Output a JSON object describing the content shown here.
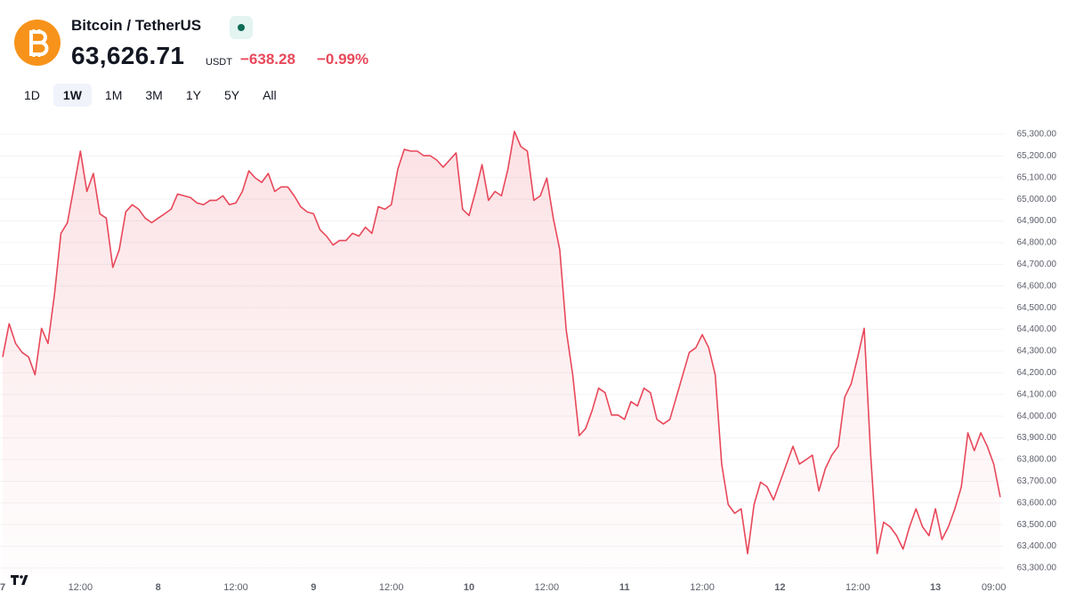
{
  "header": {
    "title": "Bitcoin / TetherUS",
    "price": "63,626.71",
    "unit": "USDT",
    "change": "−638.28",
    "change_percent": "−0.99%",
    "tabs": [
      "1D",
      "1W",
      "1M",
      "3M",
      "1Y",
      "5Y",
      "All"
    ],
    "active_tab": "1W"
  },
  "chart_data": {
    "type": "line",
    "color": "#e8485a",
    "grid": true,
    "x": [
      0,
      1,
      2,
      3,
      4,
      5,
      6,
      7,
      8,
      9,
      10,
      11,
      12,
      13,
      14,
      15,
      16,
      17,
      18,
      19,
      20,
      21,
      22,
      23,
      24,
      25,
      26,
      27,
      28,
      29,
      30,
      31,
      32,
      33,
      34,
      35,
      36,
      37,
      38,
      39,
      40,
      41,
      42,
      43,
      44,
      45,
      46,
      47,
      48,
      49,
      50,
      51,
      52,
      53,
      54,
      55,
      56,
      57,
      58,
      59,
      60,
      61,
      62,
      63,
      64,
      65,
      66,
      67,
      68,
      69,
      70,
      71,
      72,
      73,
      74,
      75,
      76,
      77,
      78,
      79,
      80,
      81,
      82,
      83,
      84,
      85,
      86,
      87,
      88,
      89,
      90,
      91,
      92,
      93,
      94,
      95,
      96,
      97,
      98,
      99,
      100,
      101,
      102,
      103,
      104,
      105,
      106,
      107,
      108,
      109,
      110,
      111,
      112,
      113,
      114,
      115,
      116,
      117,
      118,
      119,
      120,
      121,
      122,
      123,
      124,
      125,
      126,
      127,
      128,
      129,
      130,
      131,
      132,
      133,
      134,
      135,
      136,
      137,
      138,
      139,
      140,
      141,
      142,
      143,
      144,
      145,
      146,
      147,
      148,
      149,
      150,
      151,
      152,
      153,
      154
    ],
    "series": [
      {
        "values": [
          64273,
          64426,
          64335,
          64294,
          64273,
          64191,
          64405,
          64335,
          64562,
          64843,
          64892,
          65057,
          65222,
          65036,
          65119,
          64933,
          64913,
          64686,
          64768,
          64942,
          64975,
          64954,
          64913,
          64892,
          64913,
          64933,
          64954,
          65024,
          65016,
          65008,
          64983,
          64975,
          64995,
          64995,
          65016,
          64975,
          64983,
          65036,
          65131,
          65098,
          65078,
          65119,
          65036,
          65057,
          65057,
          65016,
          64966,
          64942,
          64933,
          64859,
          64830,
          64789,
          64810,
          64810,
          64843,
          64830,
          64871,
          64843,
          64966,
          64954,
          64975,
          65139,
          65230,
          65222,
          65222,
          65201,
          65201,
          65181,
          65148,
          65181,
          65214,
          64954,
          64925,
          65036,
          65160,
          64995,
          65036,
          65016,
          65139,
          65313,
          65243,
          65222,
          64995,
          65016,
          65098,
          64913,
          64768,
          64397,
          64191,
          63910,
          63943,
          64026,
          64129,
          64108,
          64005,
          64005,
          63985,
          64067,
          64047,
          64129,
          64108,
          63985,
          63964,
          63985,
          64088,
          64191,
          64294,
          64315,
          64376,
          64315,
          64191,
          63779,
          63593,
          63552,
          63573,
          63366,
          63593,
          63696,
          63675,
          63614,
          63696,
          63779,
          63861,
          63779,
          63799,
          63820,
          63655,
          63758,
          63820,
          63861,
          64088,
          64150,
          64273,
          64405,
          63820,
          63366,
          63511,
          63490,
          63449,
          63387,
          63490,
          63573,
          63490,
          63449,
          63573,
          63431,
          63490,
          63573,
          63675,
          63923,
          63841,
          63923,
          63861,
          63779,
          63626.71
        ]
      }
    ],
    "xlim": [
      0,
      154.5
    ],
    "xticks": [
      {
        "value": 0,
        "label": "7"
      },
      {
        "value": 12,
        "label": "12:00"
      },
      {
        "value": 24,
        "label": "8"
      },
      {
        "value": 36,
        "label": "12:00"
      },
      {
        "value": 48,
        "label": "9"
      },
      {
        "value": 60,
        "label": "12:00"
      },
      {
        "value": 72,
        "label": "10"
      },
      {
        "value": 84,
        "label": "12:00"
      },
      {
        "value": 96,
        "label": "11"
      },
      {
        "value": 108,
        "label": "12:00"
      },
      {
        "value": 120,
        "label": "12"
      },
      {
        "value": 132,
        "label": "12:00"
      },
      {
        "value": 144,
        "label": "13"
      },
      {
        "value": 153,
        "label": "09:00"
      }
    ],
    "ylim": [
      63263,
      65345
    ],
    "yticks": [
      {
        "value": 63300,
        "label": "63,300.00"
      },
      {
        "value": 63400,
        "label": "63,400.00"
      },
      {
        "value": 63500,
        "label": "63,500.00"
      },
      {
        "value": 63600,
        "label": "63,600.00"
      },
      {
        "value": 63700,
        "label": "63,700.00"
      },
      {
        "value": 63800,
        "label": "63,800.00"
      },
      {
        "value": 63900,
        "label": "63,900.00"
      },
      {
        "value": 64000,
        "label": "64,000.00"
      },
      {
        "value": 64100,
        "label": "64,100.00"
      },
      {
        "value": 64200,
        "label": "64,200.00"
      },
      {
        "value": 64300,
        "label": "64,300.00"
      },
      {
        "value": 64400,
        "label": "64,400.00"
      },
      {
        "value": 64500,
        "label": "64,500.00"
      },
      {
        "value": 64600,
        "label": "64,600.00"
      },
      {
        "value": 64700,
        "label": "64,700.00"
      },
      {
        "value": 64800,
        "label": "64,800.00"
      },
      {
        "value": 64900,
        "label": "64,900.00"
      },
      {
        "value": 65000,
        "label": "65,000.00"
      },
      {
        "value": 65100,
        "label": "65,100.00"
      },
      {
        "value": 65200,
        "label": "65,200.00"
      },
      {
        "value": 65300,
        "label": "65,300.00"
      }
    ]
  }
}
